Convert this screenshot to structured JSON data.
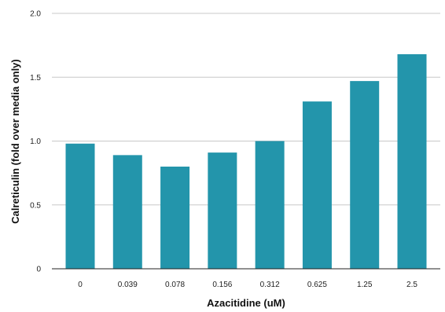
{
  "chart_data": {
    "type": "bar",
    "title": "",
    "xlabel": "Azacitidine (uM)",
    "ylabel": "Calreticulin (fold over media only)",
    "categories": [
      "0",
      "0.039",
      "0.078",
      "0.156",
      "0.312",
      "0.625",
      "1.25",
      "2.5"
    ],
    "values": [
      0.98,
      0.89,
      0.8,
      0.91,
      1.0,
      1.31,
      1.47,
      1.68
    ],
    "ylim": [
      0,
      2.0
    ],
    "yticks": [
      "0",
      "0.5",
      "1.0",
      "1.5",
      "2.0"
    ],
    "ytick_values": [
      0,
      0.5,
      1.0,
      1.5,
      2.0
    ],
    "grid": true,
    "legend": "none",
    "bar_color": "#2395ab"
  }
}
